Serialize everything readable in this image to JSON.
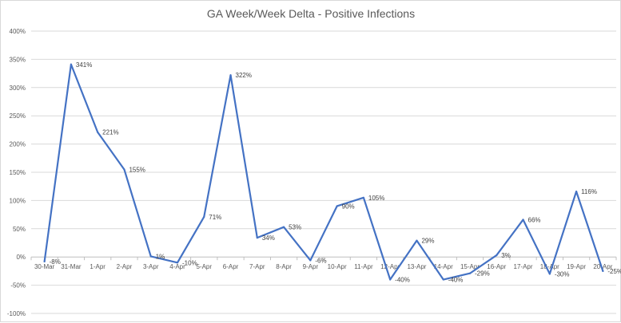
{
  "chart_data": {
    "type": "line",
    "title": "GA Week/Week Delta - Positive Infections",
    "xlabel": "",
    "ylabel": "",
    "categories": [
      "30-Mar",
      "31-Mar",
      "1-Apr",
      "2-Apr",
      "3-Apr",
      "4-Apr",
      "5-Apr",
      "6-Apr",
      "7-Apr",
      "8-Apr",
      "9-Apr",
      "10-Apr",
      "11-Apr",
      "12-Apr",
      "13-Apr",
      "14-Apr",
      "15-Apr",
      "16-Apr",
      "17-Apr",
      "18-Apr",
      "19-Apr",
      "20-Apr"
    ],
    "values": [
      -8,
      341,
      221,
      155,
      1,
      -10,
      71,
      322,
      34,
      53,
      -6,
      90,
      105,
      -40,
      29,
      -40,
      -29,
      3,
      66,
      -30,
      116,
      -25
    ],
    "data_labels": [
      "-8%",
      "341%",
      "221%",
      "155%",
      "1%",
      "-10%",
      "71%",
      "322%",
      "34%",
      "53%",
      "-6%",
      "90%",
      "105%",
      "-40%",
      "29%",
      "-40%",
      "-29%",
      "3%",
      "66%",
      "-30%",
      "116%",
      "-25%"
    ],
    "ylim": [
      -100,
      400
    ],
    "yticks": [
      -100,
      -50,
      0,
      50,
      100,
      150,
      200,
      250,
      300,
      350,
      400
    ],
    "ytick_labels": [
      "-100%",
      "-50%",
      "0%",
      "50%",
      "100%",
      "150%",
      "200%",
      "250%",
      "300%",
      "350%",
      "400%"
    ],
    "grid": true,
    "legend": "none",
    "line_color": "#4472c4",
    "grid_color": "#d9d9d9",
    "axis_color": "#bfbfbf"
  }
}
